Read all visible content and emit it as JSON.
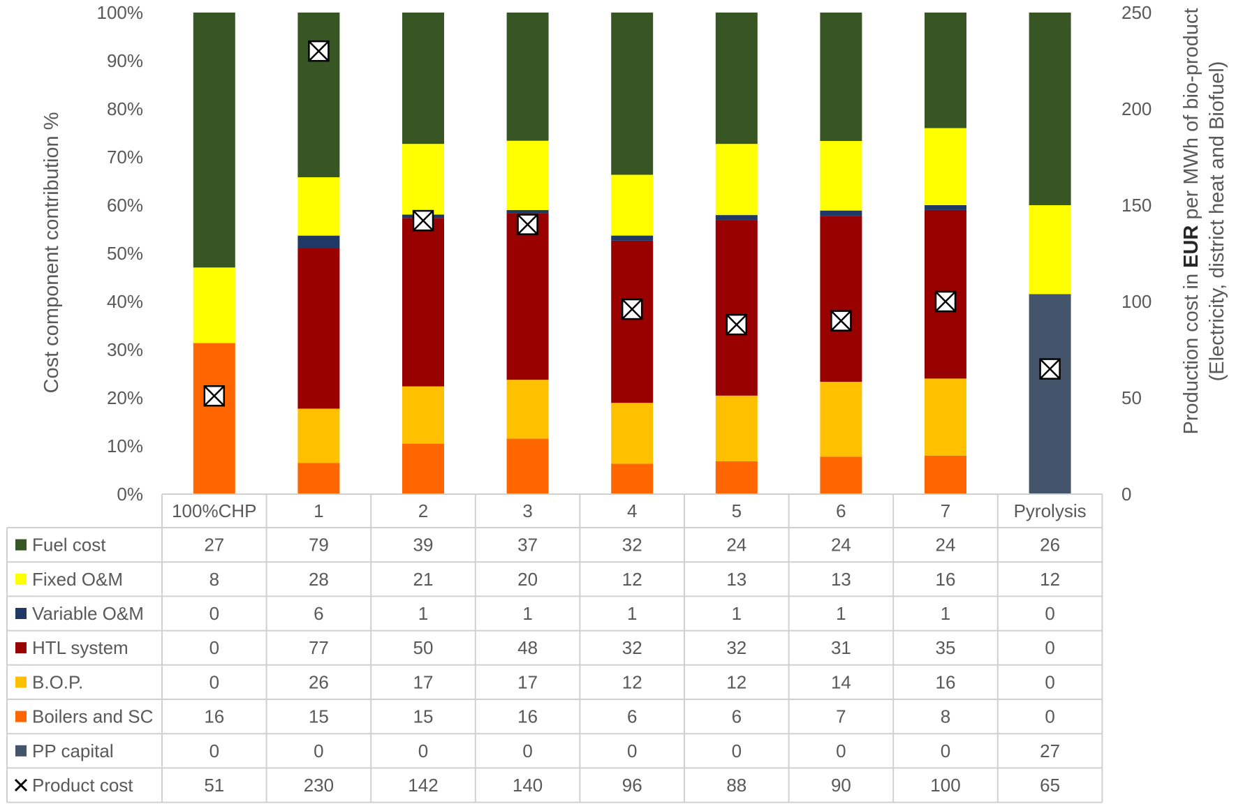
{
  "chart_data": {
    "type": "bar",
    "stacked": "percent",
    "categories": [
      "100%CHP",
      "1",
      "2",
      "3",
      "4",
      "5",
      "6",
      "7",
      "Pyrolysis"
    ],
    "series": [
      {
        "name": "Fuel cost",
        "color": "#375623",
        "values": [
          27,
          79,
          39,
          37,
          32,
          24,
          24,
          24,
          26
        ]
      },
      {
        "name": "Fixed O&M",
        "color": "#FFFF00",
        "values": [
          8,
          28,
          21,
          20,
          12,
          13,
          13,
          16,
          12
        ]
      },
      {
        "name": "Variable O&M",
        "color": "#1F3864",
        "values": [
          0,
          6,
          1,
          1,
          1,
          1,
          1,
          1,
          0
        ]
      },
      {
        "name": "HTL system",
        "color": "#990000",
        "values": [
          0,
          77,
          50,
          48,
          32,
          32,
          31,
          35,
          0
        ]
      },
      {
        "name": "B.O.P.",
        "color": "#FFC000",
        "values": [
          0,
          26,
          17,
          17,
          12,
          12,
          14,
          16,
          0
        ]
      },
      {
        "name": "Boilers and SC",
        "color": "#FF6600",
        "values": [
          16,
          15,
          15,
          16,
          6,
          6,
          7,
          8,
          0
        ]
      },
      {
        "name": "PP capital",
        "color": "#44546A",
        "values": [
          0,
          0,
          0,
          0,
          0,
          0,
          0,
          0,
          27
        ]
      }
    ],
    "markers": {
      "name": "Product cost",
      "symbol": "×",
      "axis": "right",
      "values": [
        51,
        230,
        142,
        140,
        96,
        88,
        90,
        100,
        65
      ]
    },
    "ylabel": "Cost  component contribution %",
    "y_ticks": [
      "0%",
      "10%",
      "20%",
      "30%",
      "40%",
      "50%",
      "60%",
      "70%",
      "80%",
      "90%",
      "100%"
    ],
    "ylim": [
      0,
      100
    ],
    "y2label_prefix": "Production cost in ",
    "y2label_bold": "EUR",
    "y2label_suffix": " per MWh of bio-product",
    "y2label_line2": "(Electricity, district heat and Biofuel)",
    "y2_ticks": [
      "0",
      "50",
      "100",
      "150",
      "200",
      "250"
    ],
    "y2lim": [
      0,
      250
    ],
    "grid": false,
    "legend": "data-table"
  }
}
